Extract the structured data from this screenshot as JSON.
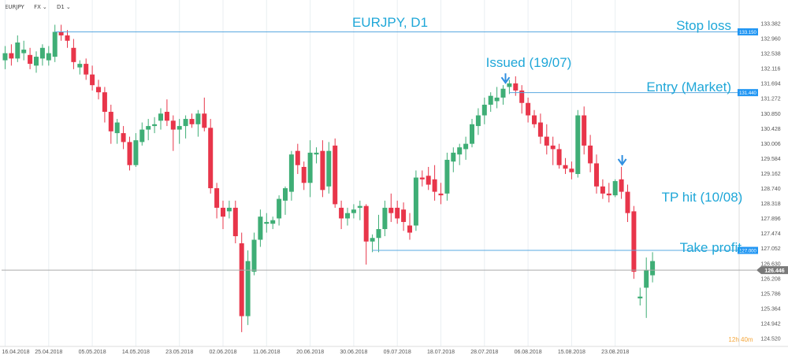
{
  "toolbar": {
    "symbol": "EURJPY",
    "chart_style": "FX",
    "timeframe": "D1",
    "dropdown_glyph": "⌄"
  },
  "countdown": {
    "hours": "12h",
    "minutes": "40m"
  },
  "colors": {
    "bull": "#3fae76",
    "bear": "#e8354a",
    "annotation": "#1fa7d8",
    "level_line": "#5aa8e0",
    "tag_bg": "#2196f3",
    "price_tag_bg": "#7a7a7a",
    "current_line": "#aaaaaa",
    "grid": "#e9eef2",
    "countdown": "#f4a63a"
  },
  "chart_data": {
    "type": "candlestick",
    "title": "EURJPY, D1",
    "xlabel": "",
    "ylabel": "",
    "ylim": [
      124.5,
      133.5
    ],
    "grid": "vertical",
    "y_ticks": [
      "133.382",
      "132.960",
      "132.538",
      "132.116",
      "131.694",
      "131.272",
      "130.850",
      "130.428",
      "130.006",
      "129.584",
      "129.162",
      "128.740",
      "128.318",
      "127.896",
      "127.474",
      "127.052",
      "126.630",
      "126.208",
      "125.786",
      "125.364",
      "124.942",
      "124.520"
    ],
    "x_ticks": [
      {
        "i": 0,
        "label": "16.04.2018"
      },
      {
        "i": 7,
        "label": "25.04.2018"
      },
      {
        "i": 14,
        "label": "05.05.2018"
      },
      {
        "i": 21,
        "label": "14.05.2018"
      },
      {
        "i": 28,
        "label": "23.05.2018"
      },
      {
        "i": 35,
        "label": "02.06.2018"
      },
      {
        "i": 42,
        "label": "11.06.2018"
      },
      {
        "i": 49,
        "label": "20.06.2018"
      },
      {
        "i": 56,
        "label": "30.06.2018"
      },
      {
        "i": 63,
        "label": "09.07.2018"
      },
      {
        "i": 70,
        "label": "18.07.2018"
      },
      {
        "i": 77,
        "label": "28.07.2018"
      },
      {
        "i": 84,
        "label": "06.08.2018"
      },
      {
        "i": 91,
        "label": "15.08.2018"
      },
      {
        "i": 98,
        "label": "23.08.2018"
      }
    ],
    "candles": [
      [
        132.35,
        132.75,
        132.1,
        132.55
      ],
      [
        132.55,
        132.8,
        132.2,
        132.4
      ],
      [
        132.4,
        133.05,
        132.3,
        132.85
      ],
      [
        132.55,
        132.9,
        132.35,
        132.65
      ],
      [
        132.5,
        132.7,
        132.1,
        132.25
      ],
      [
        132.2,
        132.6,
        132.0,
        132.45
      ],
      [
        132.4,
        132.8,
        132.2,
        132.7
      ],
      [
        132.35,
        132.75,
        132.2,
        132.55
      ],
      [
        132.45,
        133.35,
        132.3,
        133.15
      ],
      [
        133.15,
        133.35,
        132.9,
        133.05
      ],
      [
        133.05,
        133.2,
        132.7,
        132.9
      ],
      [
        132.7,
        132.95,
        132.1,
        132.3
      ],
      [
        132.15,
        132.35,
        131.95,
        132.25
      ],
      [
        132.25,
        132.4,
        131.8,
        131.95
      ],
      [
        131.95,
        132.2,
        131.5,
        131.65
      ],
      [
        131.6,
        131.8,
        131.25,
        131.45
      ],
      [
        131.45,
        131.6,
        130.6,
        130.9
      ],
      [
        130.9,
        131.1,
        130.0,
        130.35
      ],
      [
        130.3,
        130.7,
        130.0,
        130.6
      ],
      [
        130.3,
        130.5,
        129.85,
        130.05
      ],
      [
        130.05,
        130.2,
        129.25,
        129.4
      ],
      [
        129.4,
        130.3,
        129.35,
        130.1
      ],
      [
        130.05,
        130.6,
        129.95,
        130.4
      ],
      [
        130.4,
        130.7,
        130.1,
        130.5
      ],
      [
        130.5,
        130.75,
        130.3,
        130.55
      ],
      [
        130.65,
        131.0,
        130.4,
        130.85
      ],
      [
        130.9,
        131.25,
        130.5,
        130.65
      ],
      [
        130.65,
        130.8,
        129.8,
        130.4
      ],
      [
        130.4,
        130.7,
        130.0,
        130.5
      ],
      [
        130.5,
        130.8,
        130.15,
        130.7
      ],
      [
        130.7,
        130.85,
        130.45,
        130.55
      ],
      [
        130.55,
        130.95,
        130.2,
        130.85
      ],
      [
        130.85,
        131.3,
        130.35,
        130.45
      ],
      [
        130.45,
        130.7,
        128.6,
        128.75
      ],
      [
        128.75,
        128.9,
        127.9,
        128.2
      ],
      [
        128.2,
        128.4,
        127.6,
        127.95
      ],
      [
        128.1,
        128.4,
        127.9,
        128.2
      ],
      [
        128.2,
        128.4,
        127.2,
        127.4
      ],
      [
        127.2,
        127.5,
        124.7,
        125.15
      ],
      [
        125.15,
        127.0,
        124.9,
        126.7
      ],
      [
        126.4,
        127.5,
        126.3,
        127.3
      ],
      [
        127.3,
        128.15,
        127.1,
        127.95
      ],
      [
        127.75,
        128.05,
        127.5,
        127.8
      ],
      [
        127.75,
        127.95,
        127.6,
        127.85
      ],
      [
        127.9,
        128.55,
        127.7,
        128.45
      ],
      [
        128.4,
        128.8,
        128.0,
        128.75
      ],
      [
        128.65,
        129.8,
        128.4,
        129.7
      ],
      [
        129.8,
        130.0,
        129.15,
        129.4
      ],
      [
        129.35,
        129.5,
        128.7,
        128.9
      ],
      [
        128.9,
        130.1,
        128.5,
        129.75
      ],
      [
        129.7,
        129.9,
        129.45,
        129.75
      ],
      [
        129.8,
        130.1,
        128.5,
        128.7
      ],
      [
        128.8,
        130.05,
        128.6,
        129.8
      ],
      [
        129.95,
        130.15,
        128.2,
        128.3
      ],
      [
        128.2,
        128.4,
        127.6,
        127.9
      ],
      [
        127.9,
        128.2,
        127.7,
        128.05
      ],
      [
        128.05,
        128.3,
        127.9,
        128.15
      ],
      [
        128.2,
        128.4,
        127.85,
        128.25
      ],
      [
        128.25,
        128.3,
        126.6,
        127.25
      ],
      [
        127.25,
        127.45,
        126.95,
        127.35
      ],
      [
        127.35,
        128.0,
        126.95,
        127.6
      ],
      [
        127.6,
        128.4,
        127.4,
        128.2
      ],
      [
        128.2,
        128.6,
        127.8,
        128.05
      ],
      [
        128.2,
        128.4,
        127.75,
        127.9
      ],
      [
        128.15,
        128.35,
        127.55,
        127.8
      ],
      [
        127.7,
        128.05,
        127.3,
        127.5
      ],
      [
        127.7,
        129.25,
        127.55,
        129.05
      ],
      [
        129.05,
        129.25,
        128.8,
        129.0
      ],
      [
        129.1,
        129.35,
        128.7,
        128.85
      ],
      [
        129.0,
        129.4,
        128.4,
        128.65
      ],
      [
        128.6,
        128.9,
        128.3,
        128.55
      ],
      [
        128.6,
        129.75,
        128.4,
        129.55
      ],
      [
        129.5,
        129.9,
        129.2,
        129.75
      ],
      [
        129.7,
        130.0,
        129.4,
        129.9
      ],
      [
        129.85,
        130.2,
        129.55,
        130.0
      ],
      [
        130.0,
        130.7,
        129.9,
        130.55
      ],
      [
        130.5,
        131.0,
        130.25,
        130.8
      ],
      [
        130.8,
        131.3,
        130.55,
        131.1
      ],
      [
        131.1,
        131.45,
        130.9,
        131.35
      ],
      [
        131.2,
        131.6,
        131.0,
        131.3
      ],
      [
        131.3,
        131.65,
        131.1,
        131.55
      ],
      [
        131.6,
        131.8,
        131.4,
        131.7
      ],
      [
        131.7,
        131.9,
        131.35,
        131.5
      ],
      [
        131.5,
        131.65,
        130.85,
        131.15
      ],
      [
        131.15,
        131.3,
        130.6,
        130.8
      ],
      [
        130.8,
        130.95,
        130.45,
        130.55
      ],
      [
        130.6,
        130.85,
        130.0,
        130.2
      ],
      [
        130.2,
        130.55,
        129.7,
        129.95
      ],
      [
        129.95,
        130.2,
        129.4,
        129.85
      ],
      [
        129.85,
        130.0,
        129.3,
        129.4
      ],
      [
        129.4,
        129.6,
        129.15,
        129.3
      ],
      [
        129.3,
        129.5,
        129.0,
        129.2
      ],
      [
        129.15,
        130.95,
        129.05,
        130.8
      ],
      [
        130.8,
        131.05,
        129.7,
        129.95
      ],
      [
        129.95,
        130.25,
        129.2,
        129.45
      ],
      [
        129.45,
        129.7,
        128.6,
        128.8
      ],
      [
        128.8,
        129.0,
        128.45,
        128.6
      ],
      [
        128.6,
        128.9,
        128.35,
        128.55
      ],
      [
        128.55,
        129.0,
        128.5,
        128.95
      ],
      [
        129.0,
        129.35,
        128.45,
        128.65
      ],
      [
        128.65,
        128.85,
        127.8,
        128.05
      ],
      [
        128.1,
        128.25,
        126.2,
        126.4
      ],
      [
        125.65,
        125.95,
        125.45,
        125.7
      ],
      [
        125.95,
        126.8,
        125.1,
        126.45
      ],
      [
        126.3,
        126.95,
        126.1,
        126.7
      ]
    ],
    "levels": [
      {
        "name": "Stop loss",
        "price": 133.15,
        "tag": "133.150",
        "from": 8
      },
      {
        "name": "Entry (Market)",
        "price": 131.44,
        "tag": "131.440",
        "from": 81
      },
      {
        "name": "Take profit",
        "price": 127.0,
        "tag": "127.000",
        "from": 59
      }
    ],
    "current_price": {
      "price": 126.446,
      "tag": "126.446"
    },
    "annotations": [
      {
        "text": "EURJPY, D1"
      },
      {
        "text": "Stop loss"
      },
      {
        "text": "Issued (19/07)",
        "arrow_candle": 80
      },
      {
        "text": "Entry (Market)"
      },
      {
        "text": "TP hit (10/08)",
        "arrow_candle": 99
      },
      {
        "text": "Take profit"
      }
    ]
  }
}
